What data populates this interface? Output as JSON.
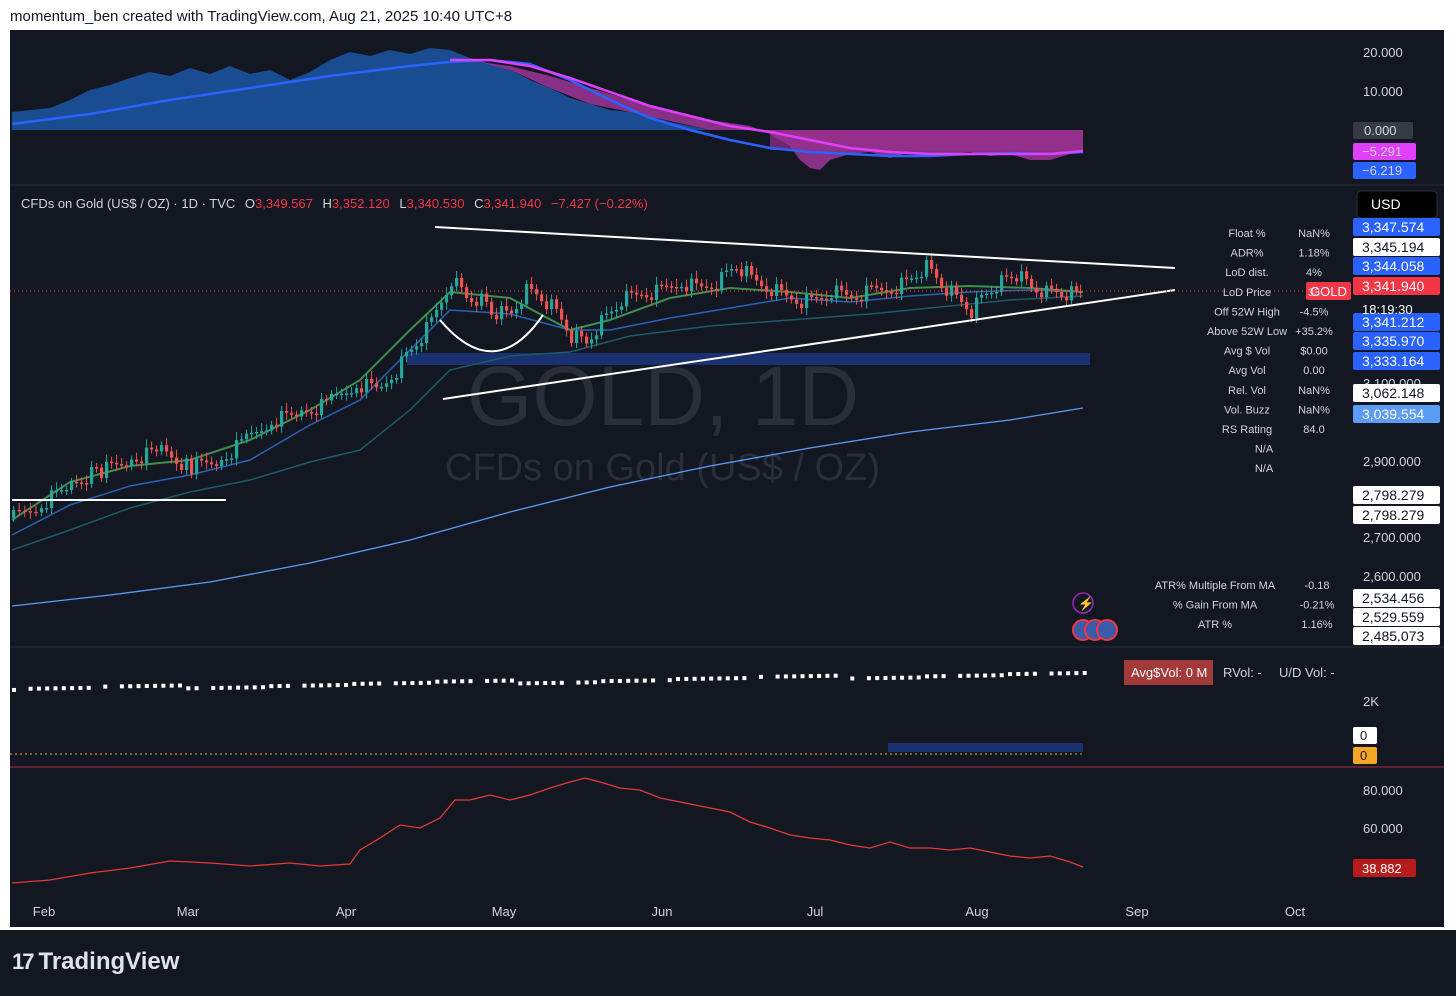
{
  "header": {
    "attribution": "momentum_ben created with TradingView.com, Aug 21, 2025 10:40 UTC+8"
  },
  "footer": {
    "brand": "TradingView"
  },
  "main_pane": {
    "symbol_line": "CFDs on Gold (US$ / OZ) · 1D · TVC",
    "open_label": "O",
    "open": "3,349.567",
    "high_label": "H",
    "high": "3,352.120",
    "low_label": "L",
    "low": "3,340.530",
    "close_label": "C",
    "close": "3,341.940",
    "change": "−7.427 (−0.22%)",
    "currency": "USD",
    "watermark_symbol": "GOLD, 1D",
    "watermark_name": "CFDs on Gold (US$ / OZ)",
    "symbol_tag": "GOLD",
    "countdown": "18:19:30",
    "ticks": [
      "3,100.000",
      "2,900.000",
      "2,700.000",
      "2,600.000"
    ],
    "price_labels": [
      {
        "text": "3,347.574",
        "color": "#2962ff"
      },
      {
        "text": "3,345.194",
        "color": "#ffffff"
      },
      {
        "text": "3,344.058",
        "color": "#2962ff"
      },
      {
        "text": "3,341.940",
        "color": "#f23645"
      },
      {
        "text": "3,341.212",
        "color": "#2962ff"
      },
      {
        "text": "3,335.970",
        "color": "#2962ff"
      },
      {
        "text": "3,333.164",
        "color": "#2962ff"
      },
      {
        "text": "3,062.148",
        "color": "#ffffff"
      },
      {
        "text": "3,039.554",
        "color": "#5b9cf6"
      },
      {
        "text": "2,798.279",
        "color": "#ffffff"
      },
      {
        "text": "2,798.279",
        "color": "#ffffff"
      },
      {
        "text": "2,534.456",
        "color": "#ffffff"
      },
      {
        "text": "2,529.559",
        "color": "#ffffff"
      },
      {
        "text": "2,485.073",
        "color": "#ffffff"
      }
    ],
    "stats": [
      {
        "label": "Float %",
        "value": "NaN%"
      },
      {
        "label": "ADR%",
        "value": "1.18%"
      },
      {
        "label": "LoD dist.",
        "value": "4%"
      },
      {
        "label": "LoD Price",
        "value": "33"
      },
      {
        "label": "Off 52W High",
        "value": "-4.5%"
      },
      {
        "label": "Above 52W Low",
        "value": "+35.2%"
      },
      {
        "label": "Avg $ Vol",
        "value": "$0.00"
      },
      {
        "label": "Avg Vol",
        "value": "0.00"
      },
      {
        "label": "Rel. Vol",
        "value": "NaN%"
      },
      {
        "label": "Vol. Buzz",
        "value": "NaN%"
      },
      {
        "label": "RS Rating",
        "value": "84.0"
      },
      {
        "label": "",
        "value": "N/A"
      },
      {
        "label": "",
        "value": "N/A"
      }
    ],
    "atr_stats": [
      {
        "label": "ATR% Multiple From MA",
        "value": "-0.18"
      },
      {
        "label": "% Gain From MA",
        "value": "-0.21%"
      },
      {
        "label": "ATR %",
        "value": "1.16%"
      }
    ]
  },
  "oscillator_pane": {
    "ticks": [
      "20.000",
      "10.000"
    ],
    "labels": [
      {
        "text": "0.000",
        "color": "#363a45"
      },
      {
        "text": "−5.291",
        "color": "#e040fb"
      },
      {
        "text": "−6.219",
        "color": "#2962ff"
      }
    ]
  },
  "volume_pane": {
    "badge": "Avg$Vol: 0 M",
    "rvol": "RVol: -",
    "ud_vol": "U/D Vol: -",
    "tick": "2K",
    "zero_white": "0",
    "zero_orange": "0"
  },
  "rsi_pane": {
    "ticks": [
      "80.000",
      "60.000"
    ],
    "value": "38.882"
  },
  "time_axis": [
    "Feb",
    "Mar",
    "Apr",
    "May",
    "Jun",
    "Jul",
    "Aug",
    "Sep",
    "Oct"
  ],
  "colors": {
    "background": "#131722",
    "up": "#26a69a",
    "down": "#ef5350",
    "osc_blue": "#1e6fd9",
    "osc_magenta": "#e040fb",
    "rsi_line": "#e53935"
  }
}
